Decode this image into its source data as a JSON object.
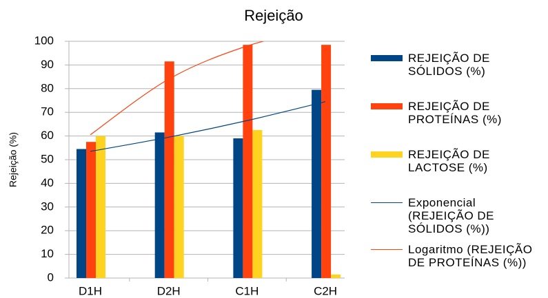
{
  "chart_data": {
    "type": "bar",
    "title": "Rejeição",
    "y_label": "Rejeição (%)",
    "categories": [
      "D1H",
      "D2H",
      "C1H",
      "C2H"
    ],
    "series": [
      {
        "name": "REJEIÇÃO DE SÓLIDOS (%)",
        "color": "#004586",
        "values": [
          54.5,
          61.5,
          59,
          79.5
        ]
      },
      {
        "name": "REJEIÇÃO DE PROTEÍNAS (%)",
        "color": "#ff420e",
        "values": [
          57.5,
          91.5,
          98.5,
          98.5
        ]
      },
      {
        "name": "REJEIÇÃO DE LACTOSE (%)",
        "color": "#ffd320",
        "values": [
          60,
          60,
          62.5,
          1.5
        ]
      }
    ],
    "trendlines": [
      {
        "name": "Exponencial (REJEIÇÃO DE SÓLIDOS (%))",
        "color": "#004586",
        "values": [
          53.5,
          59.5,
          66.5,
          74.5
        ]
      },
      {
        "name": "Logaritmo (REJEIÇÃO DE PROTEÍNAS (%))",
        "color": "#ff420e",
        "values": [
          60.5,
          84,
          98,
          106
        ]
      }
    ],
    "ylim": [
      0,
      100
    ],
    "yticks": [
      0,
      10,
      20,
      30,
      40,
      50,
      60,
      70,
      80,
      90,
      100
    ],
    "grid": true
  }
}
